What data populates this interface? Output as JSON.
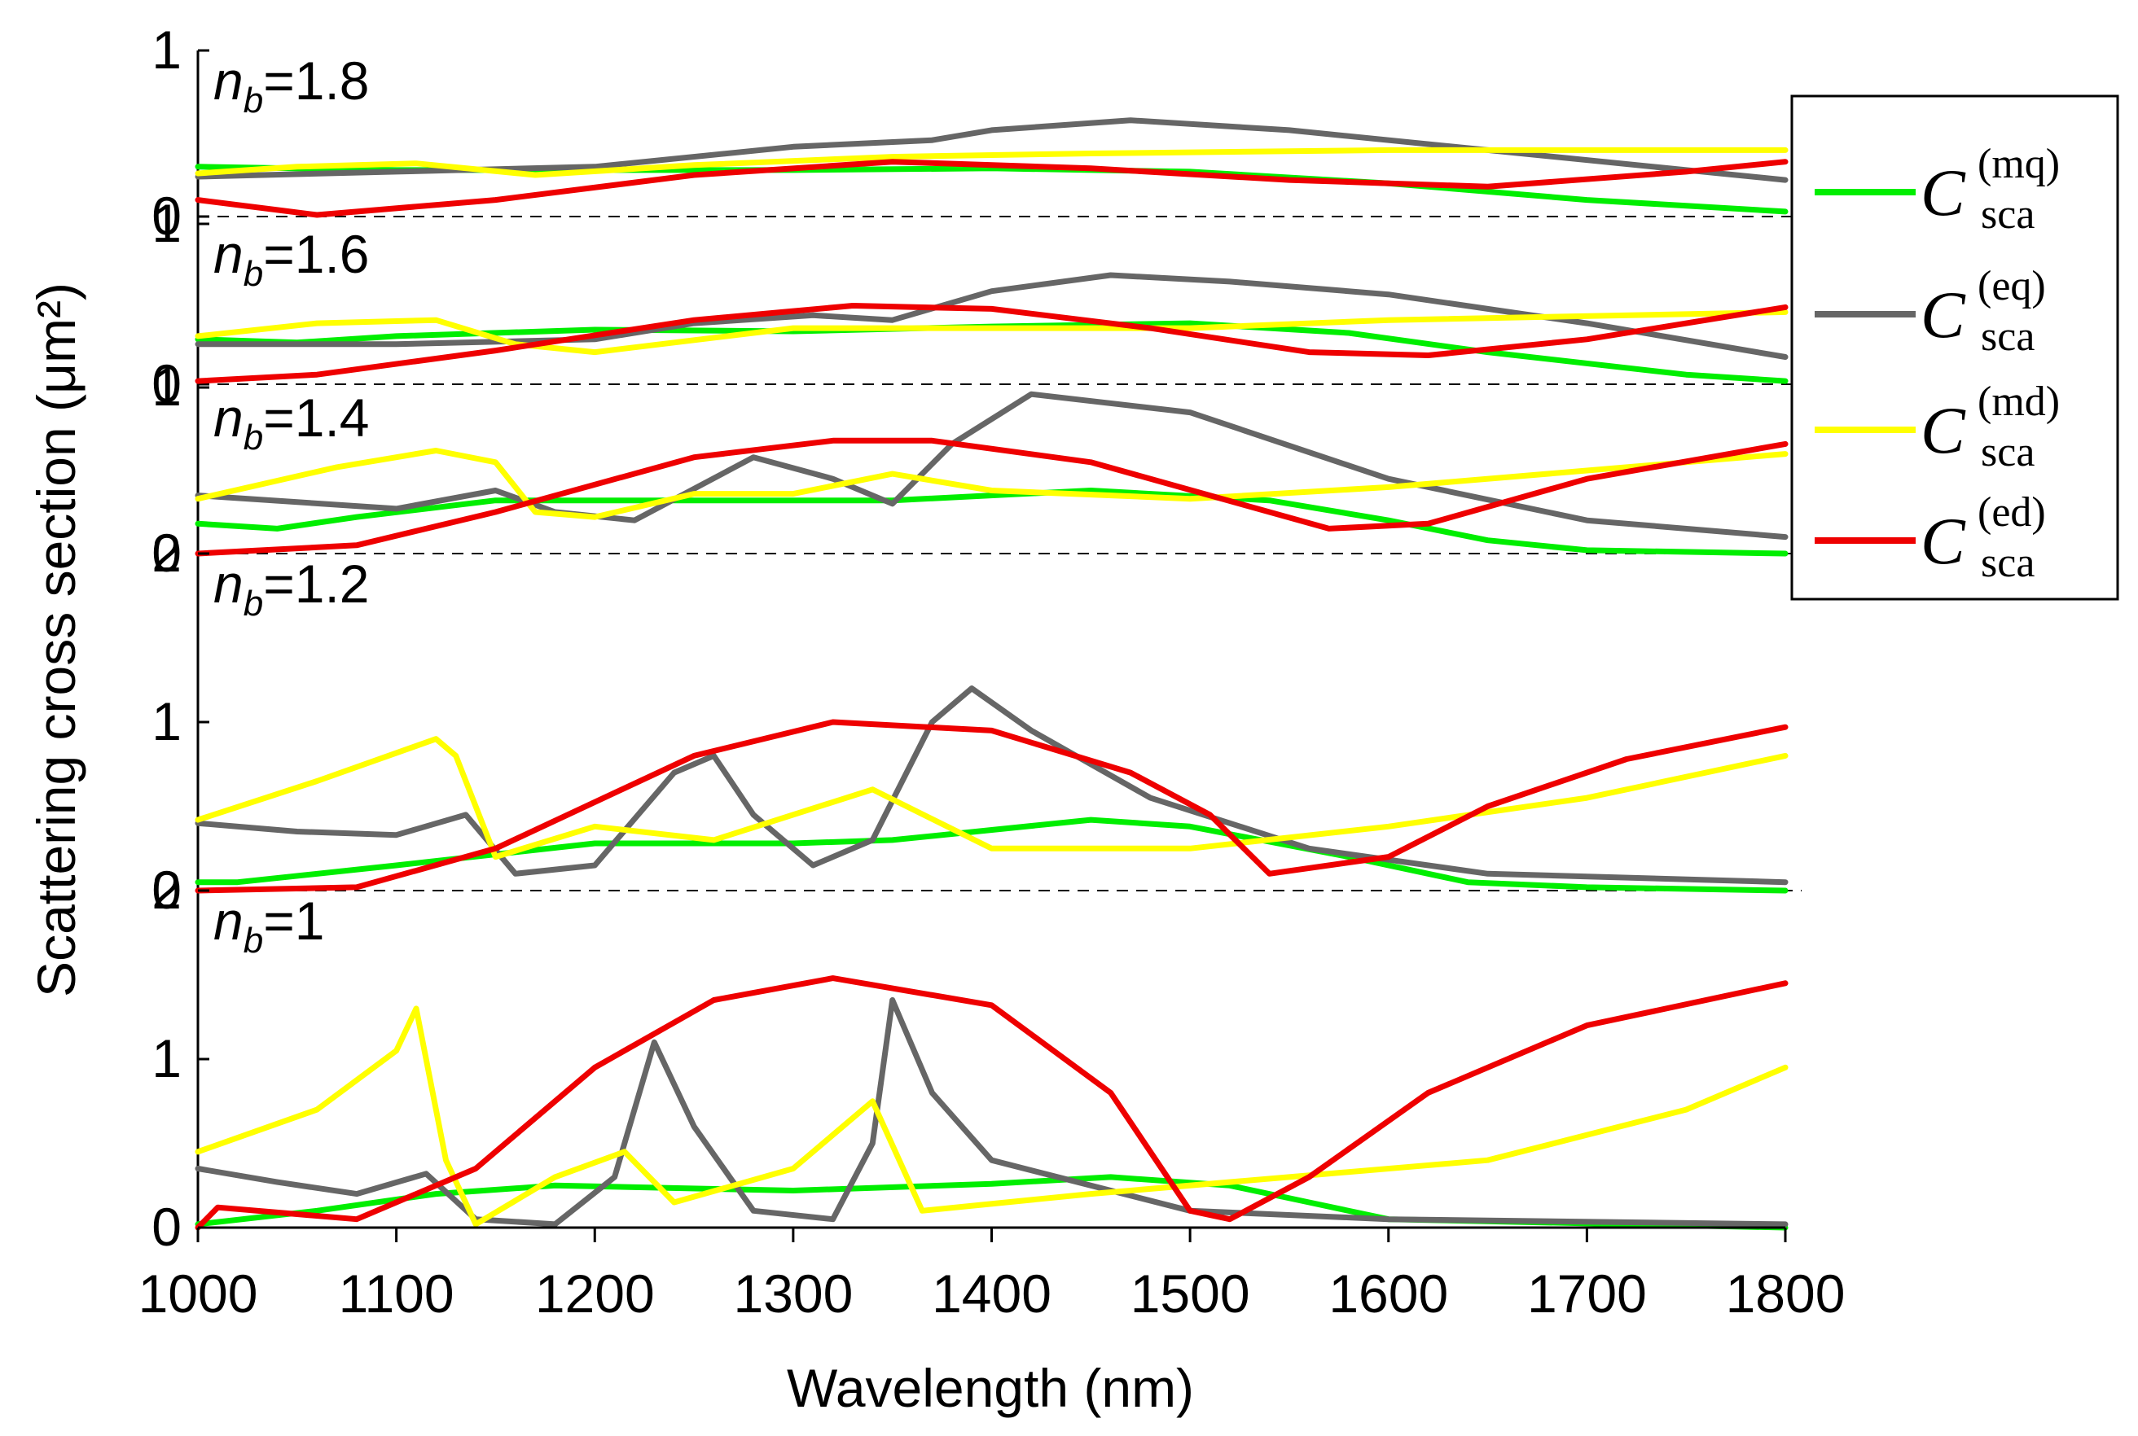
{
  "chart_data": {
    "type": "line",
    "xlabel": "Wavelength (nm)",
    "ylabel": "Scattering cross section (μm²)",
    "xlim": [
      1000,
      1800
    ],
    "xticks": [
      "1000",
      "1100",
      "1200",
      "1300",
      "1400",
      "1500",
      "1600",
      "1700",
      "1800"
    ],
    "legend": [
      {
        "key": "mq",
        "symbol": "C",
        "sub": "sca",
        "sup": "(mq)",
        "color": "#00ee00"
      },
      {
        "key": "eq",
        "symbol": "C",
        "sub": "sca",
        "sup": "(eq)",
        "color": "#666666"
      },
      {
        "key": "md",
        "symbol": "C",
        "sub": "sca",
        "sup": "(md)",
        "color": "#ffff00"
      },
      {
        "key": "ed",
        "symbol": "C",
        "sub": "sca",
        "sup": "(ed)",
        "color": "#ee0000"
      }
    ],
    "panels": [
      {
        "label_italic": "n",
        "label_sub": "b",
        "label_rest": "=1.8",
        "ylim": [
          0,
          1
        ],
        "yticks": [
          "0",
          "1"
        ],
        "series": {
          "mq": [
            [
              1000,
              0.3
            ],
            [
              1100,
              0.28
            ],
            [
              1200,
              0.28
            ],
            [
              1300,
              0.28
            ],
            [
              1400,
              0.29
            ],
            [
              1500,
              0.27
            ],
            [
              1600,
              0.2
            ],
            [
              1700,
              0.1
            ],
            [
              1800,
              0.03
            ]
          ],
          "eq": [
            [
              1000,
              0.24
            ],
            [
              1100,
              0.27
            ],
            [
              1200,
              0.3
            ],
            [
              1300,
              0.42
            ],
            [
              1370,
              0.46
            ],
            [
              1400,
              0.52
            ],
            [
              1470,
              0.58
            ],
            [
              1550,
              0.52
            ],
            [
              1650,
              0.4
            ],
            [
              1750,
              0.28
            ],
            [
              1800,
              0.22
            ]
          ],
          "md": [
            [
              1000,
              0.26
            ],
            [
              1050,
              0.3
            ],
            [
              1110,
              0.32
            ],
            [
              1170,
              0.25
            ],
            [
              1250,
              0.31
            ],
            [
              1350,
              0.36
            ],
            [
              1450,
              0.38
            ],
            [
              1600,
              0.4
            ],
            [
              1800,
              0.4
            ]
          ],
          "ed": [
            [
              1000,
              0.1
            ],
            [
              1060,
              0.01
            ],
            [
              1150,
              0.1
            ],
            [
              1250,
              0.25
            ],
            [
              1350,
              0.33
            ],
            [
              1450,
              0.29
            ],
            [
              1550,
              0.22
            ],
            [
              1650,
              0.18
            ],
            [
              1750,
              0.27
            ],
            [
              1800,
              0.33
            ]
          ]
        }
      },
      {
        "label_italic": "n",
        "label_sub": "b",
        "label_rest": "=1.6",
        "ylim": [
          0,
          1
        ],
        "yticks": [
          "0",
          "1"
        ],
        "series": {
          "mq": [
            [
              1000,
              0.28
            ],
            [
              1050,
              0.26
            ],
            [
              1100,
              0.3
            ],
            [
              1200,
              0.34
            ],
            [
              1300,
              0.33
            ],
            [
              1400,
              0.36
            ],
            [
              1500,
              0.38
            ],
            [
              1580,
              0.32
            ],
            [
              1650,
              0.2
            ],
            [
              1750,
              0.06
            ],
            [
              1800,
              0.02
            ]
          ],
          "eq": [
            [
              1000,
              0.25
            ],
            [
              1100,
              0.25
            ],
            [
              1200,
              0.28
            ],
            [
              1250,
              0.38
            ],
            [
              1310,
              0.43
            ],
            [
              1350,
              0.4
            ],
            [
              1400,
              0.58
            ],
            [
              1460,
              0.68
            ],
            [
              1520,
              0.64
            ],
            [
              1600,
              0.56
            ],
            [
              1700,
              0.38
            ],
            [
              1800,
              0.17
            ]
          ],
          "md": [
            [
              1000,
              0.3
            ],
            [
              1060,
              0.38
            ],
            [
              1120,
              0.4
            ],
            [
              1160,
              0.25
            ],
            [
              1200,
              0.2
            ],
            [
              1300,
              0.35
            ],
            [
              1400,
              0.35
            ],
            [
              1500,
              0.35
            ],
            [
              1600,
              0.4
            ],
            [
              1800,
              0.45
            ]
          ],
          "ed": [
            [
              1000,
              0.02
            ],
            [
              1060,
              0.06
            ],
            [
              1150,
              0.21
            ],
            [
              1250,
              0.4
            ],
            [
              1330,
              0.49
            ],
            [
              1400,
              0.47
            ],
            [
              1480,
              0.35
            ],
            [
              1560,
              0.2
            ],
            [
              1620,
              0.18
            ],
            [
              1700,
              0.28
            ],
            [
              1800,
              0.48
            ]
          ]
        }
      },
      {
        "label_italic": "n",
        "label_sub": "b",
        "label_rest": "=1.4",
        "ylim": [
          0,
          1
        ],
        "yticks": [
          "0",
          "1"
        ],
        "series": {
          "mq": [
            [
              1000,
              0.18
            ],
            [
              1040,
              0.15
            ],
            [
              1080,
              0.22
            ],
            [
              1150,
              0.32
            ],
            [
              1250,
              0.32
            ],
            [
              1350,
              0.32
            ],
            [
              1450,
              0.38
            ],
            [
              1540,
              0.32
            ],
            [
              1600,
              0.2
            ],
            [
              1650,
              0.08
            ],
            [
              1700,
              0.02
            ],
            [
              1800,
              0.0
            ]
          ],
          "eq": [
            [
              1000,
              0.35
            ],
            [
              1100,
              0.27
            ],
            [
              1150,
              0.38
            ],
            [
              1180,
              0.25
            ],
            [
              1220,
              0.2
            ],
            [
              1280,
              0.58
            ],
            [
              1320,
              0.45
            ],
            [
              1350,
              0.3
            ],
            [
              1380,
              0.66
            ],
            [
              1420,
              0.96
            ],
            [
              1500,
              0.85
            ],
            [
              1600,
              0.45
            ],
            [
              1700,
              0.2
            ],
            [
              1800,
              0.1
            ]
          ],
          "md": [
            [
              1000,
              0.33
            ],
            [
              1070,
              0.52
            ],
            [
              1120,
              0.62
            ],
            [
              1150,
              0.55
            ],
            [
              1170,
              0.25
            ],
            [
              1200,
              0.22
            ],
            [
              1250,
              0.36
            ],
            [
              1300,
              0.36
            ],
            [
              1350,
              0.48
            ],
            [
              1400,
              0.38
            ],
            [
              1500,
              0.33
            ],
            [
              1600,
              0.4
            ],
            [
              1700,
              0.5
            ],
            [
              1800,
              0.6
            ]
          ],
          "ed": [
            [
              1000,
              0.0
            ],
            [
              1080,
              0.05
            ],
            [
              1150,
              0.25
            ],
            [
              1250,
              0.58
            ],
            [
              1320,
              0.68
            ],
            [
              1370,
              0.68
            ],
            [
              1450,
              0.55
            ],
            [
              1510,
              0.35
            ],
            [
              1570,
              0.15
            ],
            [
              1620,
              0.18
            ],
            [
              1700,
              0.45
            ],
            [
              1800,
              0.66
            ]
          ]
        }
      },
      {
        "label_italic": "n",
        "label_sub": "b",
        "label_rest": "=1.2",
        "ylim": [
          0,
          2
        ],
        "yticks": [
          "0",
          "1",
          "2"
        ],
        "series": {
          "mq": [
            [
              1000,
              0.05
            ],
            [
              1020,
              0.05
            ],
            [
              1100,
              0.15
            ],
            [
              1200,
              0.28
            ],
            [
              1300,
              0.28
            ],
            [
              1350,
              0.3
            ],
            [
              1450,
              0.42
            ],
            [
              1500,
              0.38
            ],
            [
              1580,
              0.2
            ],
            [
              1640,
              0.05
            ],
            [
              1700,
              0.02
            ],
            [
              1800,
              0.0
            ]
          ],
          "eq": [
            [
              1000,
              0.4
            ],
            [
              1050,
              0.35
            ],
            [
              1100,
              0.33
            ],
            [
              1135,
              0.45
            ],
            [
              1160,
              0.1
            ],
            [
              1200,
              0.15
            ],
            [
              1240,
              0.7
            ],
            [
              1260,
              0.8
            ],
            [
              1280,
              0.45
            ],
            [
              1310,
              0.15
            ],
            [
              1340,
              0.3
            ],
            [
              1370,
              1.0
            ],
            [
              1390,
              1.2
            ],
            [
              1420,
              0.95
            ],
            [
              1480,
              0.55
            ],
            [
              1560,
              0.25
            ],
            [
              1650,
              0.1
            ],
            [
              1800,
              0.05
            ]
          ],
          "md": [
            [
              1000,
              0.42
            ],
            [
              1060,
              0.65
            ],
            [
              1120,
              0.9
            ],
            [
              1130,
              0.8
            ],
            [
              1150,
              0.2
            ],
            [
              1200,
              0.38
            ],
            [
              1260,
              0.3
            ],
            [
              1340,
              0.6
            ],
            [
              1400,
              0.25
            ],
            [
              1500,
              0.25
            ],
            [
              1600,
              0.38
            ],
            [
              1700,
              0.55
            ],
            [
              1800,
              0.8
            ]
          ],
          "ed": [
            [
              1000,
              0.0
            ],
            [
              1080,
              0.02
            ],
            [
              1150,
              0.25
            ],
            [
              1250,
              0.8
            ],
            [
              1320,
              1.0
            ],
            [
              1400,
              0.95
            ],
            [
              1470,
              0.7
            ],
            [
              1510,
              0.45
            ],
            [
              1540,
              0.1
            ],
            [
              1600,
              0.2
            ],
            [
              1650,
              0.5
            ],
            [
              1720,
              0.78
            ],
            [
              1800,
              0.97
            ]
          ]
        }
      },
      {
        "label_italic": "n",
        "label_sub": "b",
        "label_rest": "=1",
        "ylim": [
          0,
          2
        ],
        "yticks": [
          "0",
          "1",
          "2"
        ],
        "series": {
          "mq": [
            [
              1000,
              0.02
            ],
            [
              1060,
              0.1
            ],
            [
              1120,
              0.2
            ],
            [
              1180,
              0.25
            ],
            [
              1300,
              0.22
            ],
            [
              1400,
              0.26
            ],
            [
              1460,
              0.3
            ],
            [
              1520,
              0.25
            ],
            [
              1560,
              0.15
            ],
            [
              1600,
              0.05
            ],
            [
              1800,
              0.0
            ]
          ],
          "eq": [
            [
              1000,
              0.35
            ],
            [
              1040,
              0.27
            ],
            [
              1080,
              0.2
            ],
            [
              1115,
              0.32
            ],
            [
              1140,
              0.05
            ],
            [
              1180,
              0.02
            ],
            [
              1210,
              0.3
            ],
            [
              1230,
              1.1
            ],
            [
              1250,
              0.6
            ],
            [
              1280,
              0.1
            ],
            [
              1320,
              0.05
            ],
            [
              1340,
              0.5
            ],
            [
              1350,
              1.35
            ],
            [
              1370,
              0.8
            ],
            [
              1400,
              0.4
            ],
            [
              1500,
              0.1
            ],
            [
              1600,
              0.05
            ],
            [
              1800,
              0.02
            ]
          ],
          "md": [
            [
              1000,
              0.45
            ],
            [
              1060,
              0.7
            ],
            [
              1100,
              1.05
            ],
            [
              1110,
              1.3
            ],
            [
              1125,
              0.4
            ],
            [
              1140,
              0.02
            ],
            [
              1180,
              0.3
            ],
            [
              1215,
              0.45
            ],
            [
              1240,
              0.15
            ],
            [
              1300,
              0.35
            ],
            [
              1340,
              0.75
            ],
            [
              1365,
              0.1
            ],
            [
              1450,
              0.2
            ],
            [
              1550,
              0.3
            ],
            [
              1650,
              0.4
            ],
            [
              1750,
              0.7
            ],
            [
              1800,
              0.95
            ]
          ],
          "ed": [
            [
              1000,
              0.0
            ],
            [
              1010,
              0.12
            ],
            [
              1080,
              0.05
            ],
            [
              1140,
              0.35
            ],
            [
              1200,
              0.95
            ],
            [
              1260,
              1.35
            ],
            [
              1320,
              1.48
            ],
            [
              1400,
              1.32
            ],
            [
              1460,
              0.8
            ],
            [
              1500,
              0.1
            ],
            [
              1520,
              0.05
            ],
            [
              1560,
              0.3
            ],
            [
              1620,
              0.8
            ],
            [
              1700,
              1.2
            ],
            [
              1800,
              1.45
            ]
          ]
        }
      }
    ]
  }
}
